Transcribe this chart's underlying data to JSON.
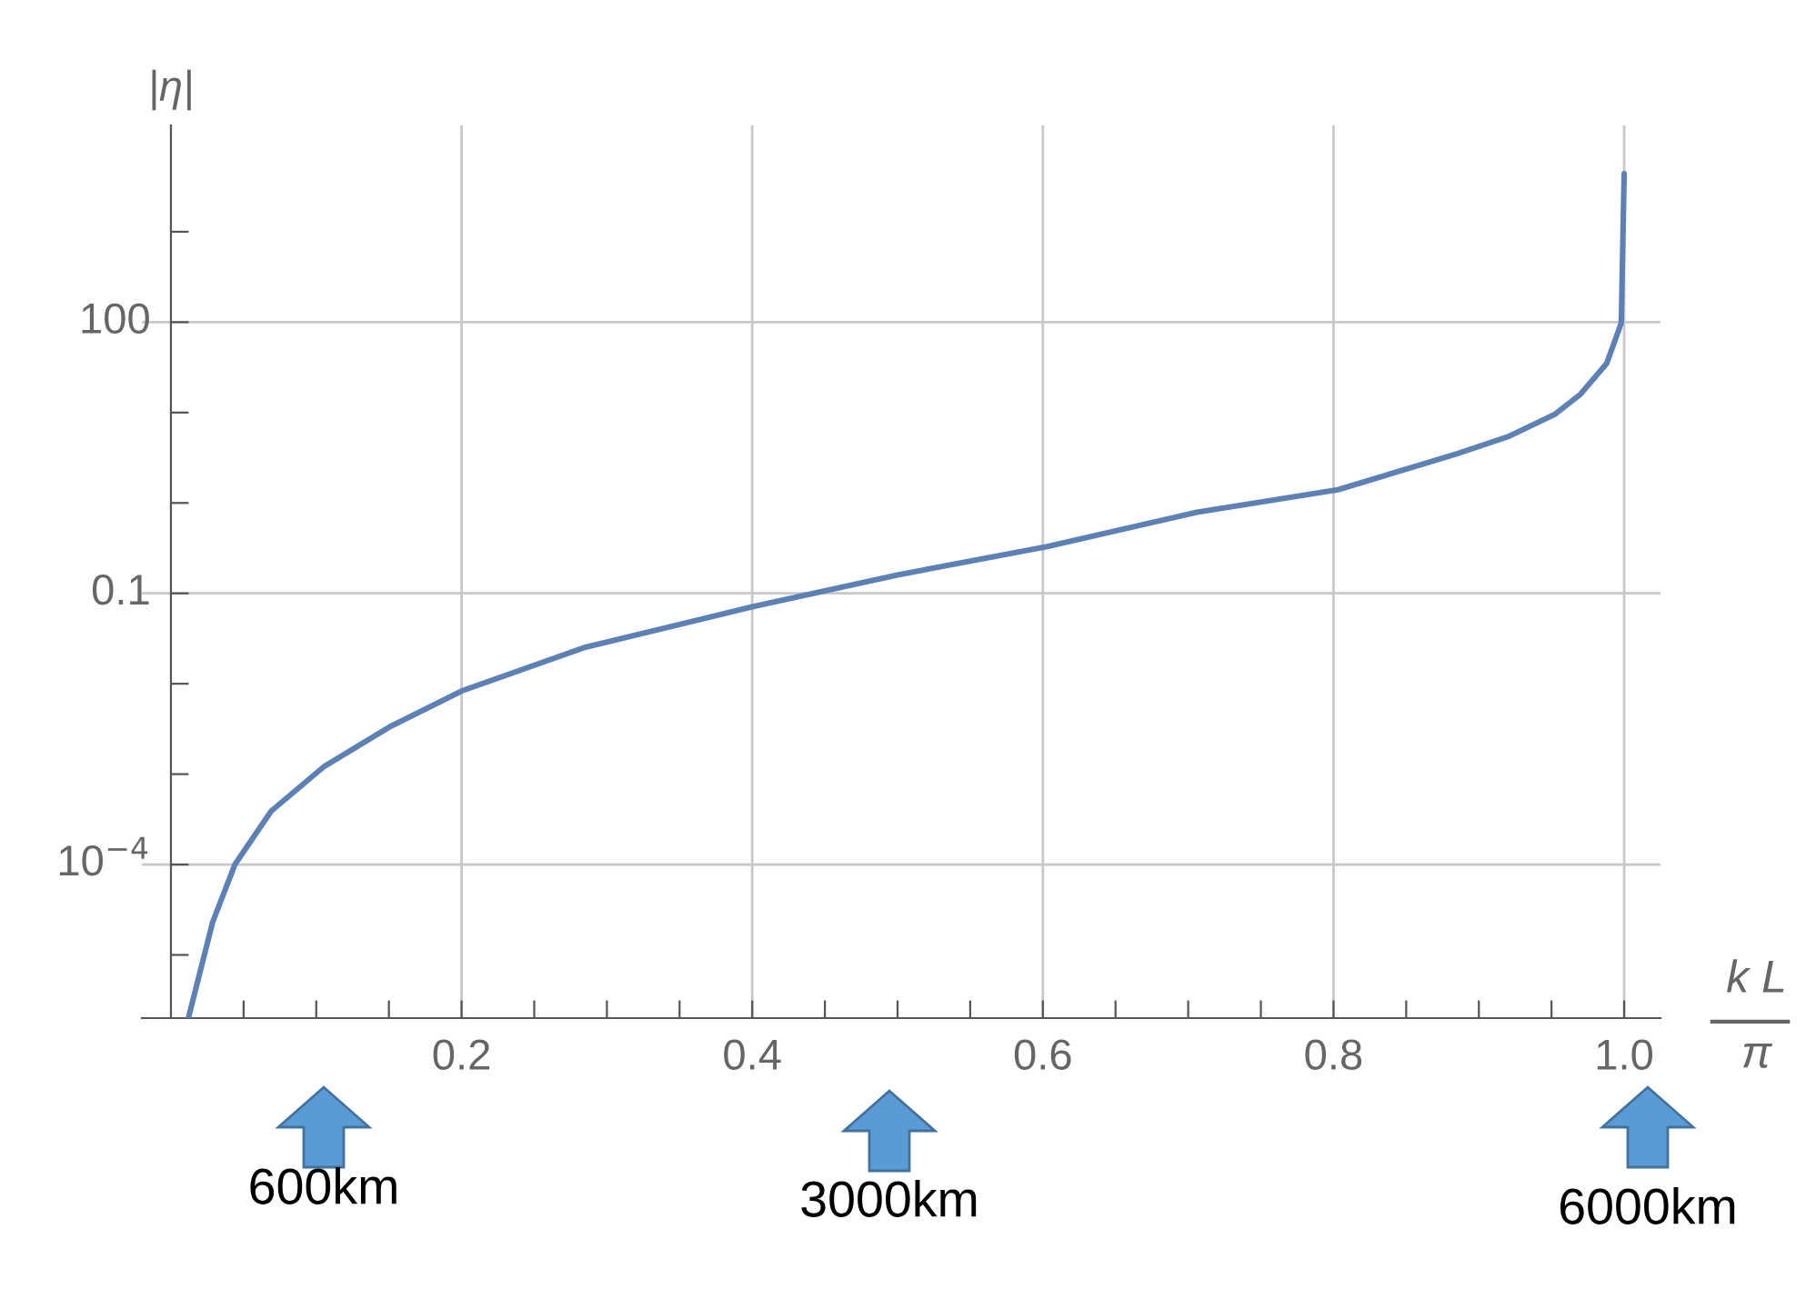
{
  "chart_data": {
    "type": "line",
    "xlabel": "k L\nπ",
    "ylabel": "|η|",
    "log": "y",
    "x": [
      0.012,
      0.0287,
      0.044,
      0.069,
      0.105,
      0.15,
      0.2,
      0.284,
      0.4,
      0.5,
      0.603,
      0.706,
      0.803,
      0.885,
      0.92,
      0.952,
      0.97,
      0.988,
      0.998,
      1.0
    ],
    "series": [
      {
        "color": "#5e81b5",
        "values": [
          2e-06,
          2.3e-05,
          0.0001,
          0.00039,
          0.0012,
          0.0033,
          0.0083,
          0.025,
          0.071,
          0.16,
          0.33,
          0.79,
          1.4,
          3.5,
          5.4,
          9.5,
          16,
          35,
          98,
          4400
        ]
      }
    ],
    "xlim": [
      -0.02,
      1.025
    ],
    "ylim": [
      2e-06,
      15000
    ],
    "xticks": [
      {
        "value": 0.05,
        "label": null
      },
      {
        "value": 0.1,
        "label": null
      },
      {
        "value": 0.15,
        "label": null
      },
      0.2,
      {
        "value": 0.25,
        "label": null
      },
      {
        "value": 0.3,
        "label": null
      },
      {
        "value": 0.35,
        "label": null
      },
      0.4,
      {
        "value": 0.45,
        "label": null
      },
      {
        "value": 0.5,
        "label": null
      },
      {
        "value": 0.55,
        "label": null
      },
      0.6,
      {
        "value": 0.65,
        "label": null
      },
      {
        "value": 0.7,
        "label": null
      },
      {
        "value": 0.75,
        "label": null
      },
      0.8,
      {
        "value": 0.85,
        "label": null
      },
      {
        "value": 0.9,
        "label": null
      },
      {
        "value": 0.95,
        "label": null
      },
      {
        "value": 1.0,
        "label": "1.0"
      }
    ],
    "yticks": [
      {
        "value": 1e-05,
        "label": null
      },
      {
        "value": 0.0001,
        "label": "10$^{−4}$"
      },
      {
        "value": 0.001,
        "label": null
      },
      {
        "value": 0.01,
        "label": null
      },
      0.1,
      {
        "value": 1,
        "label": null
      },
      {
        "value": 10,
        "label": null
      },
      100,
      {
        "value": 1000,
        "label": null
      }
    ],
    "grid": true,
    "marker": "none",
    "line_style": "solid",
    "annotations": [
      "600km",
      "3000km",
      "6000km"
    ]
  }
}
